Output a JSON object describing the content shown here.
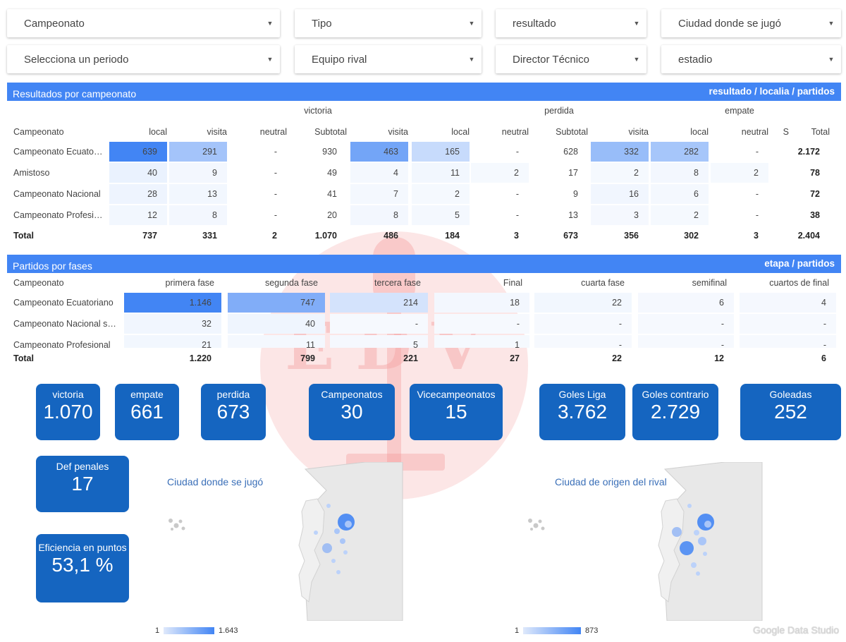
{
  "filters": {
    "row1": [
      "Campeonato",
      "Tipo",
      "resultado",
      "Ciudad donde se jugó"
    ],
    "row2": [
      "Selecciona un periodo",
      "Equipo rival",
      "Director Técnico",
      "estadio"
    ]
  },
  "results": {
    "title": "Resultados por campeonato",
    "subtitle": "resultado / localia / partidos",
    "groups": [
      "victoria",
      "perdida",
      "empate"
    ],
    "headers": [
      "Campeonato",
      "local",
      "visita",
      "neutral",
      "Subtotal",
      "visita",
      "local",
      "neutral",
      "Subtotal",
      "visita",
      "local",
      "neutral",
      "S",
      "Total"
    ],
    "rows": [
      [
        "Campeonato Ecuatoriano",
        "639",
        "291",
        "-",
        "930",
        "463",
        "165",
        "-",
        "628",
        "332",
        "282",
        "-",
        "",
        "2.172"
      ],
      [
        "Amistoso",
        "40",
        "9",
        "-",
        "49",
        "4",
        "11",
        "2",
        "17",
        "2",
        "8",
        "2",
        "",
        "78"
      ],
      [
        "Campeonato Nacional",
        "28",
        "13",
        "-",
        "41",
        "7",
        "2",
        "-",
        "9",
        "16",
        "6",
        "-",
        "",
        "72"
      ],
      [
        "Campeonato Profesional",
        "12",
        "8",
        "-",
        "20",
        "8",
        "5",
        "-",
        "13",
        "3",
        "2",
        "-",
        "",
        "38"
      ]
    ],
    "total": [
      "Total",
      "737",
      "331",
      "2",
      "1.070",
      "486",
      "184",
      "3",
      "673",
      "356",
      "302",
      "3",
      "",
      "2.404"
    ]
  },
  "phases": {
    "title": "Partidos por fases",
    "subtitle": "etapa / partidos",
    "headers": [
      "Campeonato",
      "primera fase",
      "segunda fase",
      "tercera fase",
      "Final",
      "cuarta fase",
      "semifinal",
      "cuartos de final"
    ],
    "rows": [
      [
        "Campeonato Ecuatoriano",
        "1.146",
        "747",
        "214",
        "18",
        "22",
        "6",
        "4"
      ],
      [
        "Campeonato Nacional serie",
        "32",
        "40",
        "-",
        "-",
        "-",
        "-",
        "-"
      ],
      [
        "Campeonato Profesional",
        "21",
        "11",
        "5",
        "1",
        "-",
        "-",
        "-"
      ]
    ],
    "total": [
      "Total",
      "1.220",
      "799",
      "221",
      "27",
      "22",
      "12",
      "6"
    ]
  },
  "kpis": [
    {
      "label": "victoria",
      "value": "1.070"
    },
    {
      "label": "empate",
      "value": "661"
    },
    {
      "label": "perdida",
      "value": "673"
    },
    {
      "label": "Campeonatos",
      "value": "30"
    },
    {
      "label": "Vicecampeonatos",
      "value": "15"
    },
    {
      "label": "Goles Liga",
      "value": "3.762"
    },
    {
      "label": "Goles contrario",
      "value": "2.729"
    },
    {
      "label": "Goleadas",
      "value": "252"
    },
    {
      "label": "Def penales",
      "value": "17"
    },
    {
      "label": "Eficiencia en puntos",
      "value": "53,1 %"
    }
  ],
  "maps": [
    {
      "title": "Ciudad donde se jugó",
      "legend_min": "1",
      "legend_max": "1.643"
    },
    {
      "title": "Ciudad de origen del rival",
      "legend_min": "1",
      "legend_max": "873"
    }
  ],
  "watermark_text": "EDV",
  "footer": "Google Data Studio",
  "colors": {
    "accent": "#4285f4",
    "kpi": "#1565c0",
    "heat": "#4285f4",
    "watermark": "#e53935"
  },
  "icons": {
    "dropdown": "caret-down-icon"
  }
}
